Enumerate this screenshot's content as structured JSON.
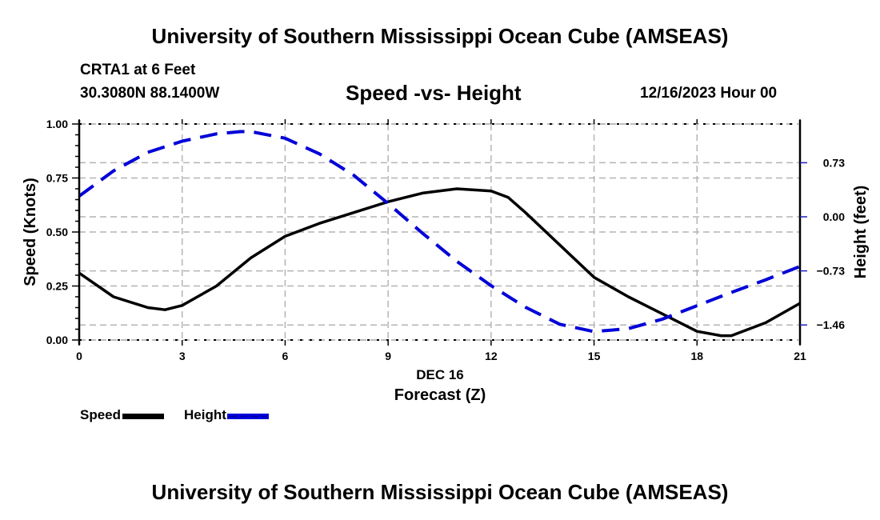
{
  "header": {
    "main_title": "University of Southern Mississippi Ocean Cube (AMSEAS)",
    "station": "CRTA1 at 6 Feet",
    "coordinates": "30.3080N  88.1400W",
    "subtitle": "Speed -vs- Height",
    "datetime": "12/16/2023 Hour 00"
  },
  "footer": {
    "bottom_title": "University of Southern Mississippi Ocean Cube (AMSEAS)"
  },
  "legend": {
    "speed_label": "Speed",
    "height_label": "Height"
  },
  "colors": {
    "speed": "#000000",
    "height": "#0000d8",
    "grid": "#b4b4b4"
  },
  "chart_data": {
    "type": "line",
    "title": "Speed -vs- Height",
    "xlabel": "Forecast (Z)",
    "xlabel_date": "DEC 16",
    "ylabel": "Speed (Knots)",
    "y2label": "Height (feet)",
    "xlim": [
      0,
      21
    ],
    "ylim": [
      0,
      1.0
    ],
    "y2lim": [
      -1.62,
      1.27
    ],
    "x_ticks": [
      0,
      3,
      6,
      9,
      12,
      15,
      18,
      21
    ],
    "x_tick_labels": [
      "0",
      "3",
      "6",
      "9",
      "12",
      "15",
      "18",
      "21"
    ],
    "y_ticks": [
      0,
      0.25,
      0.5,
      0.75,
      1.0
    ],
    "y_tick_labels": [
      "0.00",
      "0.25",
      "0.50",
      "0.75",
      "1.00"
    ],
    "y2_ticks": [
      0.73,
      0,
      -0.73,
      -1.46
    ],
    "y2_tick_labels": [
      "0.73",
      "0.00",
      "−0.73",
      "−1.46"
    ],
    "grid": true,
    "legend_position": "bottom-left",
    "x": [
      0,
      1,
      2,
      2.5,
      3,
      4,
      5,
      6,
      7,
      8,
      9,
      10,
      11,
      12,
      12.5,
      13,
      14,
      15,
      16,
      17,
      18,
      18.7,
      19,
      20,
      21
    ],
    "series": [
      {
        "name": "Speed",
        "axis": "left",
        "style": "solid",
        "values": [
          0.31,
          0.2,
          0.15,
          0.14,
          0.16,
          0.25,
          0.38,
          0.48,
          0.54,
          0.59,
          0.64,
          0.68,
          0.7,
          0.69,
          0.66,
          0.59,
          0.44,
          0.29,
          0.2,
          0.12,
          0.04,
          0.02,
          0.02,
          0.08,
          0.17
        ]
      },
      {
        "name": "Height",
        "axis": "right",
        "style": "dashed",
        "x": [
          0,
          1,
          2,
          3,
          4,
          4.7,
          5,
          6,
          7,
          8,
          9,
          10,
          11,
          12,
          13,
          14,
          15,
          16,
          17,
          18,
          19,
          20,
          21
        ],
        "values": [
          0.28,
          0.62,
          0.87,
          1.02,
          1.12,
          1.15,
          1.15,
          1.06,
          0.85,
          0.56,
          0.18,
          -0.22,
          -0.6,
          -0.93,
          -1.22,
          -1.45,
          -1.55,
          -1.51,
          -1.38,
          -1.2,
          -1.02,
          -0.85,
          -0.67
        ]
      }
    ]
  }
}
